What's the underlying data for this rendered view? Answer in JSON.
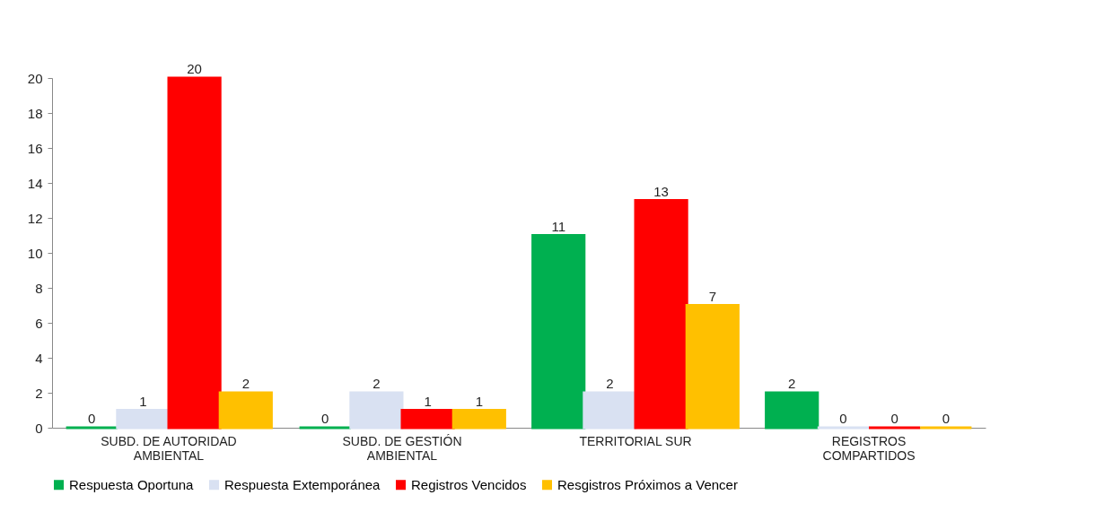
{
  "chart_data": {
    "type": "bar",
    "categories": [
      "SUBD. DE AUTORIDAD AMBIENTAL",
      "SUBD. DE GESTIÓN AMBIENTAL",
      "TERRITORIAL SUR",
      "REGISTROS COMPARTIDOS"
    ],
    "series": [
      {
        "name": "Respuesta Oportuna",
        "color": "#00b050",
        "values": [
          0,
          0,
          11,
          2
        ]
      },
      {
        "name": "Respuesta Extemporánea",
        "color": "#d9e1f2",
        "values": [
          1,
          2,
          2,
          0
        ]
      },
      {
        "name": "Registros Vencidos",
        "color": "#ff0000",
        "values": [
          20,
          1,
          13,
          0
        ]
      },
      {
        "name": "Resgistros Próximos a Vencer",
        "color": "#ffc000",
        "values": [
          2,
          1,
          7,
          0
        ]
      }
    ],
    "ylim": [
      0,
      20
    ],
    "yticks": [
      0,
      2,
      4,
      6,
      8,
      10,
      12,
      14,
      16,
      18,
      20
    ],
    "grid": false,
    "legend": "bottom",
    "data_labels": true
  }
}
